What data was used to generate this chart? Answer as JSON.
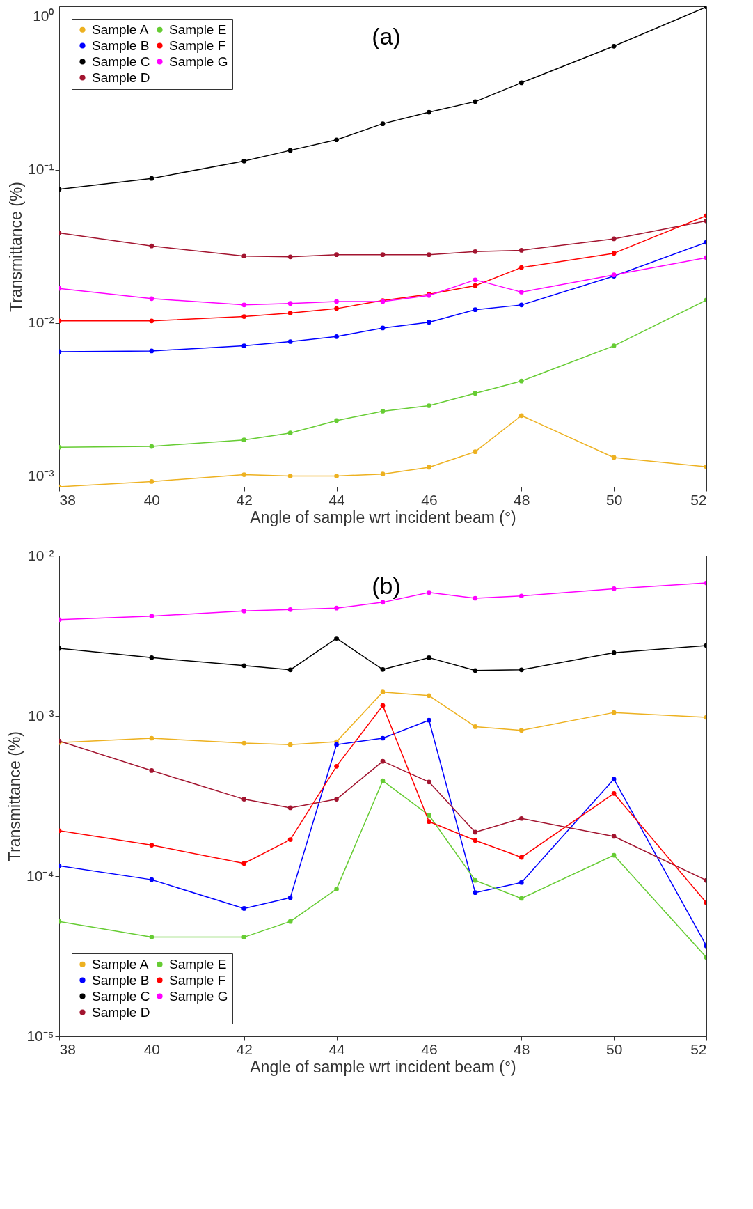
{
  "chart_data": [
    {
      "type": "line",
      "xlabel": "Angle of sample wrt incident beam (°)",
      "ylabel": "Transmittance (%)",
      "annotations": [
        "(a)"
      ],
      "x": [
        38,
        40,
        42,
        43,
        44,
        45,
        46,
        47,
        48,
        50,
        52
      ],
      "xlim": [
        38,
        52
      ],
      "xticks": [
        38,
        40,
        42,
        44,
        46,
        48,
        50,
        52
      ],
      "ylim": [
        0.00085,
        1.17
      ],
      "yticks": [
        {
          "value": 0.001,
          "label": "10⁻³"
        },
        {
          "value": 0.01,
          "label": "10⁻²"
        },
        {
          "value": 0.1,
          "label": "10⁻¹"
        },
        {
          "value": 1,
          "label": "10⁰"
        }
      ],
      "log": true,
      "grid": false,
      "legend": "top left",
      "marker": "circle",
      "line_style": "solid",
      "series": [
        {
          "name": "Sample A",
          "color": "#edb120",
          "values": [
            0.00085,
            0.00092,
            0.00102,
            0.001,
            0.001,
            0.00103,
            0.00114,
            0.00144,
            0.00248,
            0.00132,
            0.00115
          ]
        },
        {
          "name": "Sample B",
          "color": "#0000ff",
          "values": [
            0.00649,
            0.00656,
            0.00708,
            0.00755,
            0.00814,
            0.00927,
            0.0101,
            0.0122,
            0.0131,
            0.0202,
            0.0336
          ]
        },
        {
          "name": "Sample C",
          "color": "#000000",
          "values": [
            0.0746,
            0.0879,
            0.114,
            0.134,
            0.157,
            0.2,
            0.238,
            0.279,
            0.37,
            0.642,
            1.16
          ]
        },
        {
          "name": "Sample D",
          "color": "#a2142f",
          "values": [
            0.0387,
            0.0318,
            0.0273,
            0.027,
            0.0279,
            0.0279,
            0.0279,
            0.0292,
            0.0298,
            0.0354,
            0.0464
          ]
        },
        {
          "name": "Sample E",
          "color": "#66cc33",
          "values": [
            0.00154,
            0.00156,
            0.00172,
            0.00191,
            0.0023,
            0.00265,
            0.00288,
            0.00347,
            0.00417,
            0.00708,
            0.0141
          ]
        },
        {
          "name": "Sample F",
          "color": "#ff0000",
          "values": [
            0.0103,
            0.0103,
            0.011,
            0.0116,
            0.0124,
            0.014,
            0.0154,
            0.0175,
            0.023,
            0.0285,
            0.0501
          ]
        },
        {
          "name": "Sample G",
          "color": "#ff00ff",
          "values": [
            0.0168,
            0.0144,
            0.0131,
            0.0134,
            0.0138,
            0.0138,
            0.0151,
            0.0191,
            0.0159,
            0.0206,
            0.0267
          ]
        }
      ]
    },
    {
      "type": "line",
      "xlabel": "Angle of sample wrt incident beam (°)",
      "ylabel": "Transmittance (%)",
      "annotations": [
        "(b)"
      ],
      "x": [
        38,
        40,
        42,
        43,
        44,
        45,
        46,
        47,
        48,
        50,
        52
      ],
      "xlim": [
        38,
        52
      ],
      "xticks": [
        38,
        40,
        42,
        44,
        46,
        48,
        50,
        52
      ],
      "ylim": [
        1e-05,
        0.01
      ],
      "yticks": [
        {
          "value": 1e-05,
          "label": "10⁻⁵"
        },
        {
          "value": 0.0001,
          "label": "10⁻⁴"
        },
        {
          "value": 0.001,
          "label": "10⁻³"
        },
        {
          "value": 0.01,
          "label": "10⁻²"
        }
      ],
      "log": true,
      "grid": false,
      "legend": "bottom left",
      "marker": "circle",
      "line_style": "solid",
      "series": [
        {
          "name": "Sample A",
          "color": "#edb120",
          "values": [
            0.000682,
            0.000726,
            0.000676,
            0.000662,
            0.00069,
            0.00141,
            0.00134,
            0.000857,
            0.000813,
            0.00105,
            0.00098
          ]
        },
        {
          "name": "Sample B",
          "color": "#0000ff",
          "values": [
            0.000116,
            9.5e-05,
            6.28e-05,
            7.33e-05,
            0.000662,
            0.000726,
            0.00094,
            7.89e-05,
            9.12e-05,
            0.000403,
            3.67e-05
          ]
        },
        {
          "name": "Sample C",
          "color": "#000000",
          "values": [
            0.00264,
            0.00231,
            0.00206,
            0.00194,
            0.00305,
            0.00195,
            0.00231,
            0.00192,
            0.00194,
            0.00248,
            0.00275
          ]
        },
        {
          "name": "Sample D",
          "color": "#a2142f",
          "values": [
            0.000697,
            0.000456,
            0.000302,
            0.000267,
            0.000302,
            0.000521,
            0.000387,
            0.000188,
            0.000229,
            0.000177,
            9.4e-05
          ]
        },
        {
          "name": "Sample E",
          "color": "#66cc33",
          "values": [
            5.21e-05,
            4.16e-05,
            4.16e-05,
            5.21e-05,
            8.3e-05,
            0.000394,
            0.00024,
            9.4e-05,
            7.26e-05,
            0.000135,
            3.11e-05
          ]
        },
        {
          "name": "Sample F",
          "color": "#ff0000",
          "values": [
            0.000192,
            0.000156,
            0.00012,
            0.000169,
            0.000485,
            0.00116,
            0.000219,
            0.000167,
            0.000131,
            0.000328,
            6.82e-05
          ]
        },
        {
          "name": "Sample G",
          "color": "#ff00ff",
          "values": [
            0.00399,
            0.0042,
            0.00452,
            0.00461,
            0.00471,
            0.00512,
            0.0059,
            0.00543,
            0.00561,
            0.00622,
            0.00676
          ]
        }
      ]
    }
  ]
}
